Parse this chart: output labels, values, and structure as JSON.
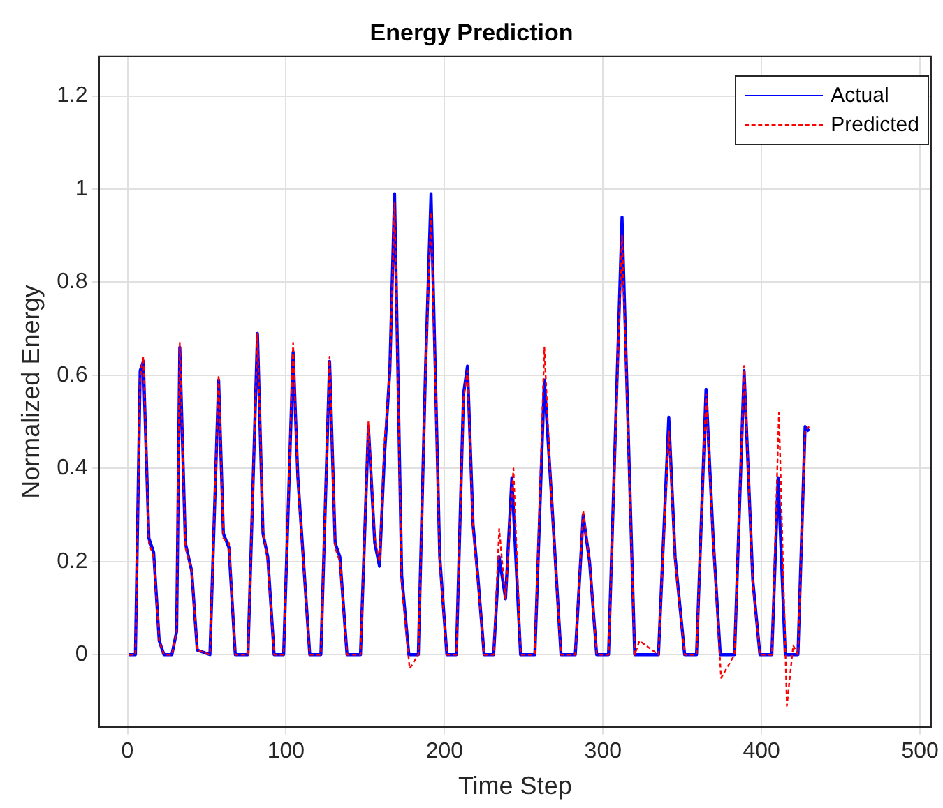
{
  "chart_data": {
    "type": "line",
    "title": "Energy Prediction",
    "xlabel": "Time Step",
    "ylabel": "Normalized Energy",
    "xlim": [
      -18,
      507
    ],
    "ylim": [
      -0.156,
      1.285
    ],
    "xticks": [
      0,
      100,
      200,
      300,
      400,
      500
    ],
    "yticks": [
      0,
      0.2,
      0.4,
      0.6,
      0.8,
      1,
      1.2
    ],
    "grid": true,
    "legend": "top right",
    "marker": "none",
    "series": [
      {
        "name": "Actual",
        "color": "#0000ff",
        "line_style": "solid",
        "x": [
          1,
          5,
          8,
          10,
          13.5,
          16.5,
          20,
          23,
          28,
          31,
          33,
          36.5,
          40.5,
          44,
          52,
          57.5,
          60.5,
          64,
          68,
          76,
          82,
          85.5,
          88.5,
          92.5,
          98.5,
          104.5,
          107.5,
          115,
          122,
          127.5,
          131,
          134,
          138.5,
          147,
          152,
          156,
          159,
          162,
          165.5,
          168.5,
          173,
          177.5,
          183.5,
          188,
          191.5,
          197,
          201.5,
          207.5,
          212,
          214.5,
          218,
          221,
          225,
          231,
          234.5,
          238.5,
          242.5,
          248,
          257,
          263,
          267.5,
          273.5,
          282.5,
          287.5,
          291.5,
          296,
          303.5,
          312,
          320,
          335,
          341.5,
          345.5,
          351.5,
          359,
          365,
          369.5,
          374,
          383,
          389,
          394.5,
          399,
          406.5,
          410.5,
          415,
          423,
          427.5,
          430
        ],
        "values": [
          0,
          0,
          0.61,
          0.63,
          0.25,
          0.22,
          0.03,
          0,
          0,
          0.05,
          0.66,
          0.24,
          0.18,
          0.01,
          0,
          0.59,
          0.26,
          0.23,
          0,
          0,
          0.69,
          0.26,
          0.21,
          0,
          0,
          0.65,
          0.38,
          0,
          0,
          0.63,
          0.24,
          0.21,
          0,
          0,
          0.49,
          0.24,
          0.19,
          0.42,
          0.61,
          0.99,
          0.17,
          0,
          0,
          0.61,
          0.99,
          0.21,
          0,
          0,
          0.56,
          0.62,
          0.28,
          0.17,
          0,
          0,
          0.21,
          0.12,
          0.38,
          0,
          0,
          0.59,
          0.34,
          0,
          0,
          0.3,
          0.2,
          0,
          0,
          0.94,
          0,
          0,
          0.51,
          0.21,
          0,
          0,
          0.57,
          0.25,
          0,
          0,
          0.61,
          0.16,
          0,
          0,
          0.38,
          0,
          0,
          0.49,
          0.48
        ]
      },
      {
        "name": "Predicted",
        "color": "#ff0000",
        "line_style": "dashed",
        "x": [
          1,
          5,
          8,
          10,
          13.5,
          16.5,
          20,
          23,
          28,
          31,
          33,
          36.5,
          40.5,
          44,
          52,
          57.5,
          60.5,
          64,
          68,
          76,
          82,
          85.5,
          88.5,
          92.5,
          98.5,
          104.5,
          107.5,
          115,
          122,
          127.5,
          131,
          134,
          138.5,
          147,
          152,
          156,
          159,
          162,
          165.5,
          168.5,
          173,
          178,
          183.5,
          188,
          191.5,
          197,
          201.5,
          207.5,
          212,
          214.5,
          218,
          221,
          225,
          231,
          234.5,
          238.5,
          243.5,
          248,
          257,
          263,
          267.5,
          273.5,
          282.5,
          287.5,
          291.5,
          296,
          303.5,
          312,
          320,
          323,
          335,
          341.5,
          345.5,
          351.5,
          359,
          365,
          369.5,
          374.5,
          383,
          389,
          394.5,
          399,
          406.5,
          411,
          416,
          420,
          423,
          427.5,
          430
        ],
        "values": [
          0,
          0,
          0.6,
          0.64,
          0.24,
          0.21,
          0.03,
          0,
          0,
          0.05,
          0.67,
          0.23,
          0.18,
          0.01,
          0,
          0.6,
          0.25,
          0.24,
          0,
          0,
          0.69,
          0.27,
          0.2,
          0,
          0,
          0.67,
          0.37,
          0,
          0,
          0.64,
          0.23,
          0.2,
          0,
          0,
          0.5,
          0.25,
          0.2,
          0.45,
          0.6,
          0.97,
          0.15,
          -0.03,
          0,
          0.6,
          0.95,
          0.2,
          0,
          0,
          0.55,
          0.61,
          0.27,
          0.16,
          0,
          0,
          0.27,
          0.12,
          0.4,
          0,
          0,
          0.66,
          0.33,
          0,
          0,
          0.31,
          0.2,
          0,
          0,
          0.9,
          0,
          0.03,
          0,
          0.48,
          0.2,
          0,
          0,
          0.56,
          0.24,
          -0.05,
          0,
          0.62,
          0.15,
          0,
          0,
          0.52,
          -0.11,
          0.02,
          0,
          0.48,
          0.49
        ]
      }
    ]
  }
}
